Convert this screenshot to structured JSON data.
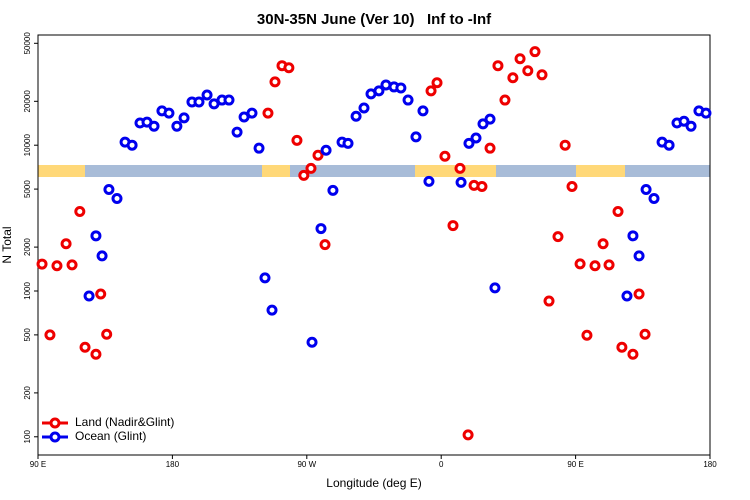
{
  "chart_data": {
    "type": "scatter",
    "title": "30N-35N June (Ver 10)   Inf to -Inf",
    "x_label": "Longitude (deg E)",
    "y_label": "N Total",
    "xlim": [
      90,
      540
    ],
    "xticks": [
      {
        "value": 90,
        "label": "90 E"
      },
      {
        "value": 180,
        "label": "180"
      },
      {
        "value": 270,
        "label": "90 W"
      },
      {
        "value": 360,
        "label": "0"
      },
      {
        "value": 450,
        "label": "90 E"
      },
      {
        "value": 540,
        "label": "180"
      }
    ],
    "ylim": [
      75,
      57000
    ],
    "yticks": [
      100,
      200,
      500,
      1000,
      2000,
      5000,
      10000,
      20000,
      50000
    ],
    "y_log": true,
    "legend": "bottom-left",
    "series": [
      {
        "name": "Land (Nadir&Glint)",
        "color": "#ee0000",
        "x": [
          92.7,
          98,
          102.7,
          108.8,
          112.8,
          118,
          121.5,
          128.8,
          132,
          136,
          244,
          248.7,
          253.4,
          258,
          263.4,
          268,
          272.8,
          277.5,
          282.2,
          353.2,
          357.2,
          362.5,
          367.9,
          372.6,
          378,
          382,
          387.3,
          392.7,
          398,
          402.7,
          408,
          412.8,
          418,
          422.8,
          427.5,
          432.2,
          438.2,
          443,
          447.6,
          453,
          457.6,
          463,
          468.4,
          472.4,
          478.4,
          481,
          488.4,
          492.5,
          496.5
        ],
        "values": [
          1530,
          500,
          1490,
          2110,
          1510,
          3510,
          411,
          368,
          953,
          505,
          16600,
          27200,
          35100,
          34000,
          10800,
          6210,
          6930,
          8530,
          2080,
          23600,
          26800,
          8400,
          2810,
          6940,
          103,
          5300,
          5210,
          9540,
          35100,
          20400,
          29000,
          39200,
          32400,
          43800,
          30400,
          853,
          2360,
          10000,
          5210,
          1535,
          497,
          1490,
          2110,
          1510,
          3510,
          411,
          368,
          953,
          505
        ]
      },
      {
        "name": "Ocean (Glint)",
        "color": "#0000ee",
        "x": [
          124.2,
          128.8,
          132.9,
          137.5,
          142.9,
          148.3,
          153,
          158.3,
          163,
          167.7,
          173,
          177.7,
          183,
          187.8,
          193.1,
          197.8,
          203.2,
          207.9,
          213.2,
          217.9,
          223.3,
          228,
          233.3,
          238,
          242,
          246.7,
          273.5,
          279.5,
          282.9,
          287.5,
          293.6,
          297.6,
          303,
          308.3,
          313,
          318.3,
          323,
          328.4,
          333,
          337.8,
          343.1,
          347.8,
          351.8,
          373.3,
          378.6,
          383.3,
          388,
          392.7,
          396,
          484.4,
          488.4,
          492.5,
          497.2,
          502.5,
          507.9,
          512.6,
          517.9,
          522.6,
          527.3,
          532.6,
          537.3
        ],
        "values": [
          924,
          2390,
          1740,
          4970,
          4310,
          10500,
          10000,
          14200,
          14400,
          13500,
          17200,
          16600,
          13500,
          15400,
          19800,
          19800,
          22100,
          19200,
          20400,
          20400,
          12300,
          15600,
          16600,
          9540,
          1230,
          739,
          445,
          2680,
          9240,
          4900,
          10500,
          10300,
          15800,
          18000,
          22500,
          23600,
          25900,
          25100,
          24700,
          20400,
          11400,
          17200,
          5650,
          5560,
          10300,
          11200,
          14000,
          15100,
          1050,
          924,
          2390,
          1740,
          4970,
          4310,
          10500,
          10000,
          14200,
          14600,
          13500,
          17200,
          16600
        ]
      }
    ]
  }
}
